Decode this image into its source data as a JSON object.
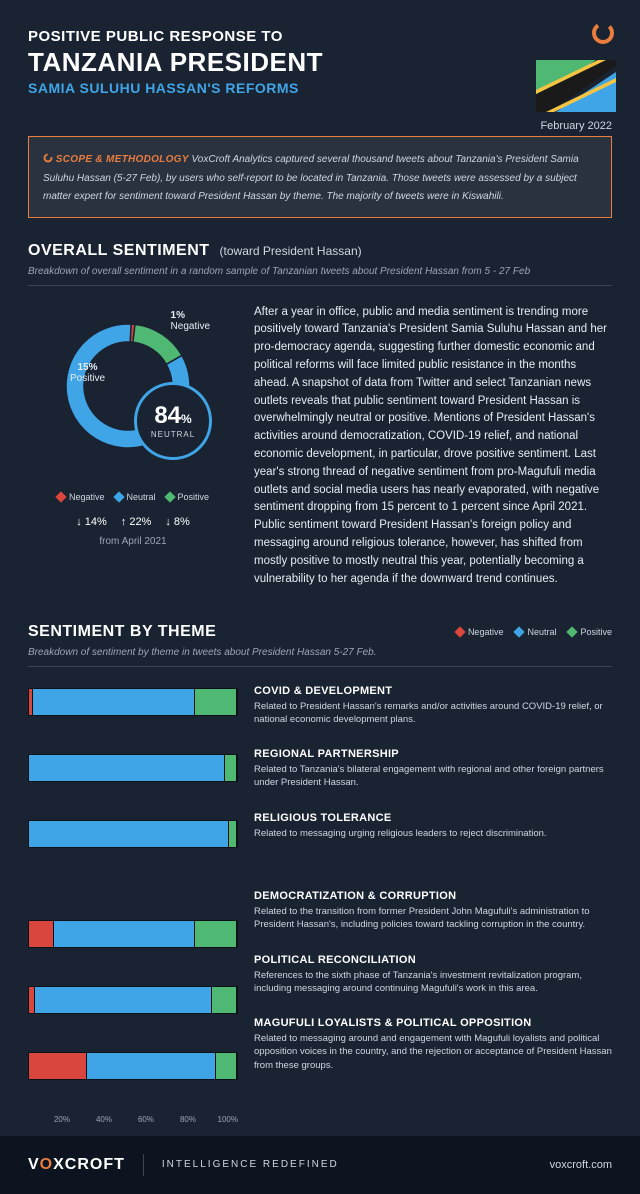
{
  "colors": {
    "bg": "#1a2332",
    "accent": "#e87d3e",
    "blue": "#3fa5e6",
    "green": "#4fb873",
    "red": "#d9463d",
    "grey": "#9aa6b5"
  },
  "header": {
    "line1": "POSITIVE PUBLIC RESPONSE TO",
    "line2": "TANZANIA PRESIDENT",
    "line3": "SAMIA SULUHU HASSAN'S REFORMS",
    "date": "February 2022"
  },
  "scope": {
    "label": "SCOPE & METHODOLOGY",
    "text": "VoxCroft Analytics captured several thousand tweets about Tanzania's President Samia Suluhu Hassan (5-27 Feb), by users who self-report to be located in Tanzania. Those tweets were assessed by a subject matter expert for sentiment toward President Hassan by theme. The majority of tweets were in Kiswahili."
  },
  "overall": {
    "title": "OVERALL SENTIMENT",
    "paren": "(toward President Hassan)",
    "sub": "Breakdown of overall sentiment in a random sample of Tanzanian tweets about President Hassan from 5 - 27 Feb",
    "donut": {
      "neutral_pct": 84,
      "positive_pct": 15,
      "negative_pct": 1,
      "neutral_label": "NEUTRAL",
      "neg_label": "Negative",
      "pos_label": "Positive",
      "neutral_color": "#3fa5e6",
      "positive_color": "#4fb873",
      "negative_color": "#d9463d"
    },
    "legend": {
      "negative": "Negative",
      "neutral": "Neutral",
      "positive": "Positive"
    },
    "changes": {
      "negative": "↓ 14%",
      "neutral": "↑ 22%",
      "positive": "↓ 8%",
      "from": "from April 2021"
    },
    "body": "After a year in office, public and media sentiment is trending more positively toward Tanzania's President Samia Suluhu Hassan and her pro-democracy agenda, suggesting further domestic economic and political reforms will face limited public resistance in the months ahead. A snapshot of data from Twitter and select Tanzanian news outlets reveals that public sentiment toward President Hassan is overwhelmingly neutral or positive. Mentions of President Hassan's activities around democratization, COVID-19 relief, and national economic development, in particular, drove positive sentiment. Last year's strong thread of negative sentiment from pro-Magufuli media outlets and social media users has nearly evaporated, with negative sentiment dropping from 15 percent to 1 percent since April 2021. Public sentiment toward President Hassan's foreign policy and messaging around religious tolerance, however, has shifted from mostly positive to mostly neutral this year, potentially becoming a vulnerability to her agenda if the downward trend continues."
  },
  "themes": {
    "title": "SENTIMENT BY THEME",
    "sub": "Breakdown of sentiment by theme in tweets about President Hassan 5-27 Feb.",
    "legend": {
      "negative": "Negative",
      "neutral": "Neutral",
      "positive": "Positive"
    },
    "bars": [
      {
        "neg": 2,
        "neu": 78,
        "pos": 20
      },
      {
        "neg": 0,
        "neu": 94,
        "pos": 6
      },
      {
        "neg": 0,
        "neu": 96,
        "pos": 4
      },
      {
        "neg": 12,
        "neu": 68,
        "pos": 20
      },
      {
        "neg": 3,
        "neu": 85,
        "pos": 12
      },
      {
        "neg": 28,
        "neu": 62,
        "pos": 10
      }
    ],
    "axis": [
      "20%",
      "40%",
      "60%",
      "80%",
      "100%"
    ],
    "items": [
      {
        "title": "COVID & DEVELOPMENT",
        "desc": "Related to President Hassan's remarks and/or activities around COVID-19 relief, or national economic development plans."
      },
      {
        "title": "REGIONAL PARTNERSHIP",
        "desc": "Related to Tanzania's bilateral engagement with regional and other foreign partners under President Hassan."
      },
      {
        "title": "RELIGIOUS TOLERANCE",
        "desc": "Related to messaging urging religious leaders to reject discrimination."
      },
      {
        "title": "DEMOCRATIZATION & CORRUPTION",
        "desc": "Related to the transition from former President John Magufuli's administration to President Hassan's, including policies toward tackling corruption in the country."
      },
      {
        "title": "POLITICAL RECONCILIATION",
        "desc": "References to the sixth phase of Tanzania's investment revitalization program, including messaging around continuing Magufuli's work in this area."
      },
      {
        "title": "MAGUFULI LOYALISTS & POLITICAL OPPOSITION",
        "desc": "Related to messaging around and engagement with Magufuli loyalists and political opposition voices in the country, and the rejection or acceptance of President Hassan from these groups."
      }
    ]
  },
  "footer": {
    "brand1": "V",
    "brand2": "XCROFT",
    "tag": "INTELLIGENCE REDEFINED",
    "url": "voxcroft.com"
  }
}
